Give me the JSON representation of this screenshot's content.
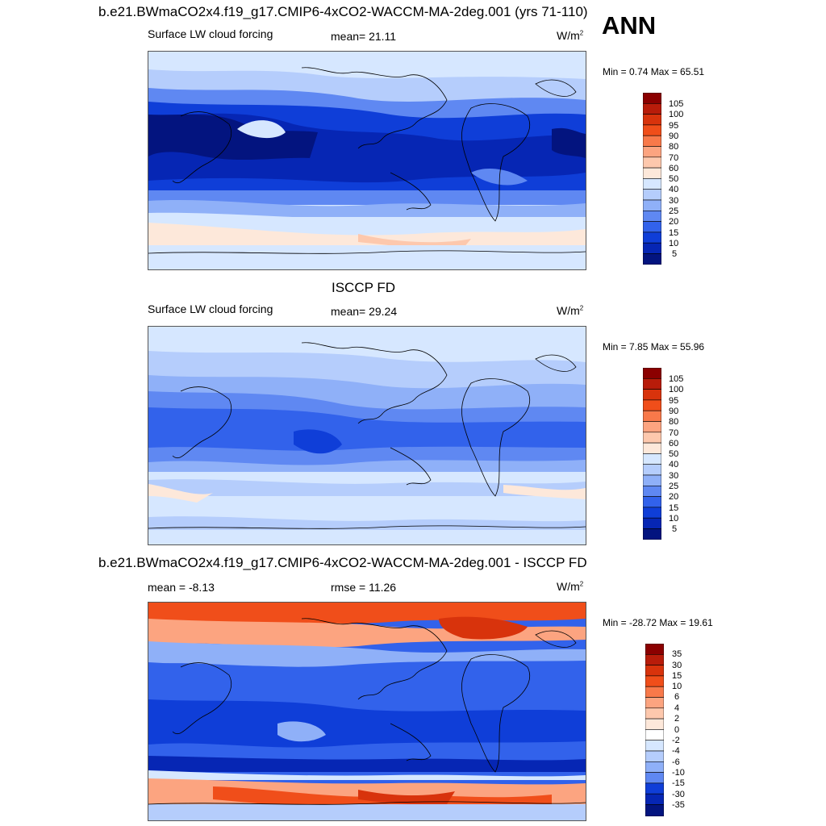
{
  "season": "ANN",
  "panels": [
    {
      "top_title": "b.e21.BWmaCO2x4.f19_g17.CMIP6-4xCO2-WACCM-MA-2deg.001 (yrs 71-110)",
      "left": "Surface LW cloud forcing",
      "center": "mean=  21.11",
      "units": "W/m",
      "units_sup": "2",
      "minmax": "Min =   0.74 Max =  65.51",
      "kind": "abs",
      "levels": [
        "105",
        "100",
        "95",
        "90",
        "80",
        "70",
        "60",
        "50",
        "40",
        "30",
        "25",
        "20",
        "15",
        "10",
        "5"
      ]
    },
    {
      "top_title": "ISCCP FD",
      "left": "Surface LW cloud forcing",
      "center": "mean=  29.24",
      "units": "W/m",
      "units_sup": "2",
      "minmax": "Min =   7.85 Max =  55.96",
      "kind": "abs",
      "levels": [
        "105",
        "100",
        "95",
        "90",
        "80",
        "70",
        "60",
        "50",
        "40",
        "30",
        "25",
        "20",
        "15",
        "10",
        "5"
      ]
    },
    {
      "top_title": "b.e21.BWmaCO2x4.f19_g17.CMIP6-4xCO2-WACCM-MA-2deg.001 - ISCCP FD",
      "left": "mean =  -8.13",
      "center": "rmse =  11.26",
      "units": "W/m",
      "units_sup": "2",
      "minmax": "Min = -28.72 Max =  19.61",
      "kind": "diff",
      "levels": [
        "35",
        "30",
        "15",
        "10",
        "6",
        "4",
        "2",
        "0",
        "-2",
        "-4",
        "-6",
        "-10",
        "-15",
        "-30",
        "-35"
      ]
    }
  ],
  "colors": {
    "abs_scale": [
      "#8b0000",
      "#b81c0a",
      "#d8330c",
      "#f04e1a",
      "#f8794a",
      "#fca480",
      "#fdc8ad",
      "#fde8da",
      "#d6e7ff",
      "#b5cdfc",
      "#8fb0f8",
      "#5f88f2",
      "#3262eb",
      "#0f3ed8",
      "#0626b4",
      "#03147f"
    ],
    "diff_scale": [
      "#8b0000",
      "#b81c0a",
      "#d8330c",
      "#f04e1a",
      "#f8794a",
      "#fca480",
      "#fdc8ad",
      "#fde8da",
      "#ffffff",
      "#d6e7ff",
      "#b5cdfc",
      "#8fb0f8",
      "#5f88f2",
      "#3262eb",
      "#0f3ed8",
      "#0626b4",
      "#03147f"
    ]
  }
}
